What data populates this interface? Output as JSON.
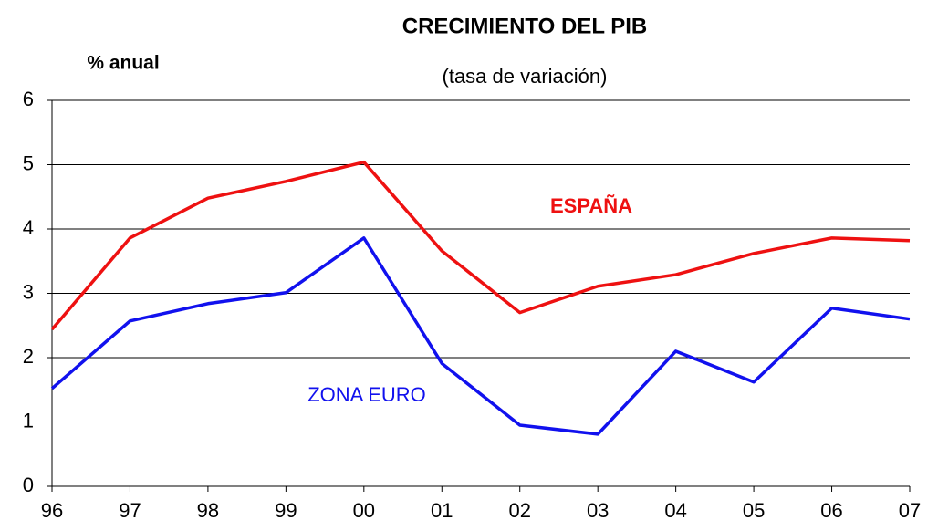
{
  "chart_data": {
    "type": "line",
    "title": "CRECIMIENTO DEL PIB",
    "subtitle": "(tasa de variación)",
    "y_label": "% anual",
    "categories": [
      "96",
      "97",
      "98",
      "99",
      "00",
      "01",
      "02",
      "03",
      "04",
      "05",
      "06",
      "07"
    ],
    "series": [
      {
        "name": "ESPAÑA",
        "color": "#ee1111",
        "values": [
          2.44,
          3.86,
          4.48,
          4.74,
          5.04,
          3.66,
          2.7,
          3.11,
          3.29,
          3.62,
          3.86,
          3.82
        ]
      },
      {
        "name": "ZONA EURO",
        "color": "#1111ee",
        "values": [
          1.52,
          2.57,
          2.84,
          3.01,
          3.86,
          1.91,
          0.95,
          0.81,
          2.1,
          1.62,
          2.77,
          2.6
        ]
      }
    ],
    "ylim": [
      0,
      6
    ],
    "yticks": [
      0,
      1,
      2,
      3,
      4,
      5,
      6
    ],
    "grid": true
  }
}
